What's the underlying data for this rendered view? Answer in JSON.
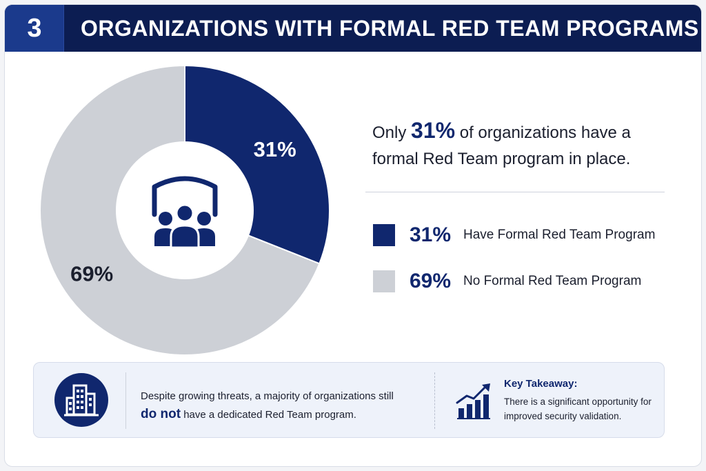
{
  "header": {
    "number": "3",
    "title": "ORGANIZATIONS WITH FORMAL RED TEAM PROGRAMS"
  },
  "chart_data": {
    "type": "pie",
    "categories": [
      "Have Formal Red Team Program",
      "No Formal Red Team Program"
    ],
    "values": [
      31,
      69
    ],
    "value_labels": [
      "31%",
      "69%"
    ],
    "colors": [
      "#10276e",
      "#cdd0d6"
    ],
    "center_icon": "shield-people-icon"
  },
  "headline": {
    "before": "Only ",
    "highlight": "31%",
    "after": " of organizations have a formal Red Team program in place."
  },
  "legend": [
    {
      "value": "31%",
      "label": "Have Formal Red Team Program",
      "color": "#10276e"
    },
    {
      "value": "69%",
      "label": "No Formal Red Team Program",
      "color": "#cdd0d6"
    }
  ],
  "bottom": {
    "left_icon": "building-icon",
    "text_line1": "Despite growing threats, a majority of organizations still",
    "text_strong": "do not",
    "text_line2": " have a dedicated Red Team program.",
    "right_icon": "growth-chart-icon",
    "takeaway_title": "Key Takeaway:",
    "takeaway_text": "There is a significant opportunity for improved security validation."
  }
}
